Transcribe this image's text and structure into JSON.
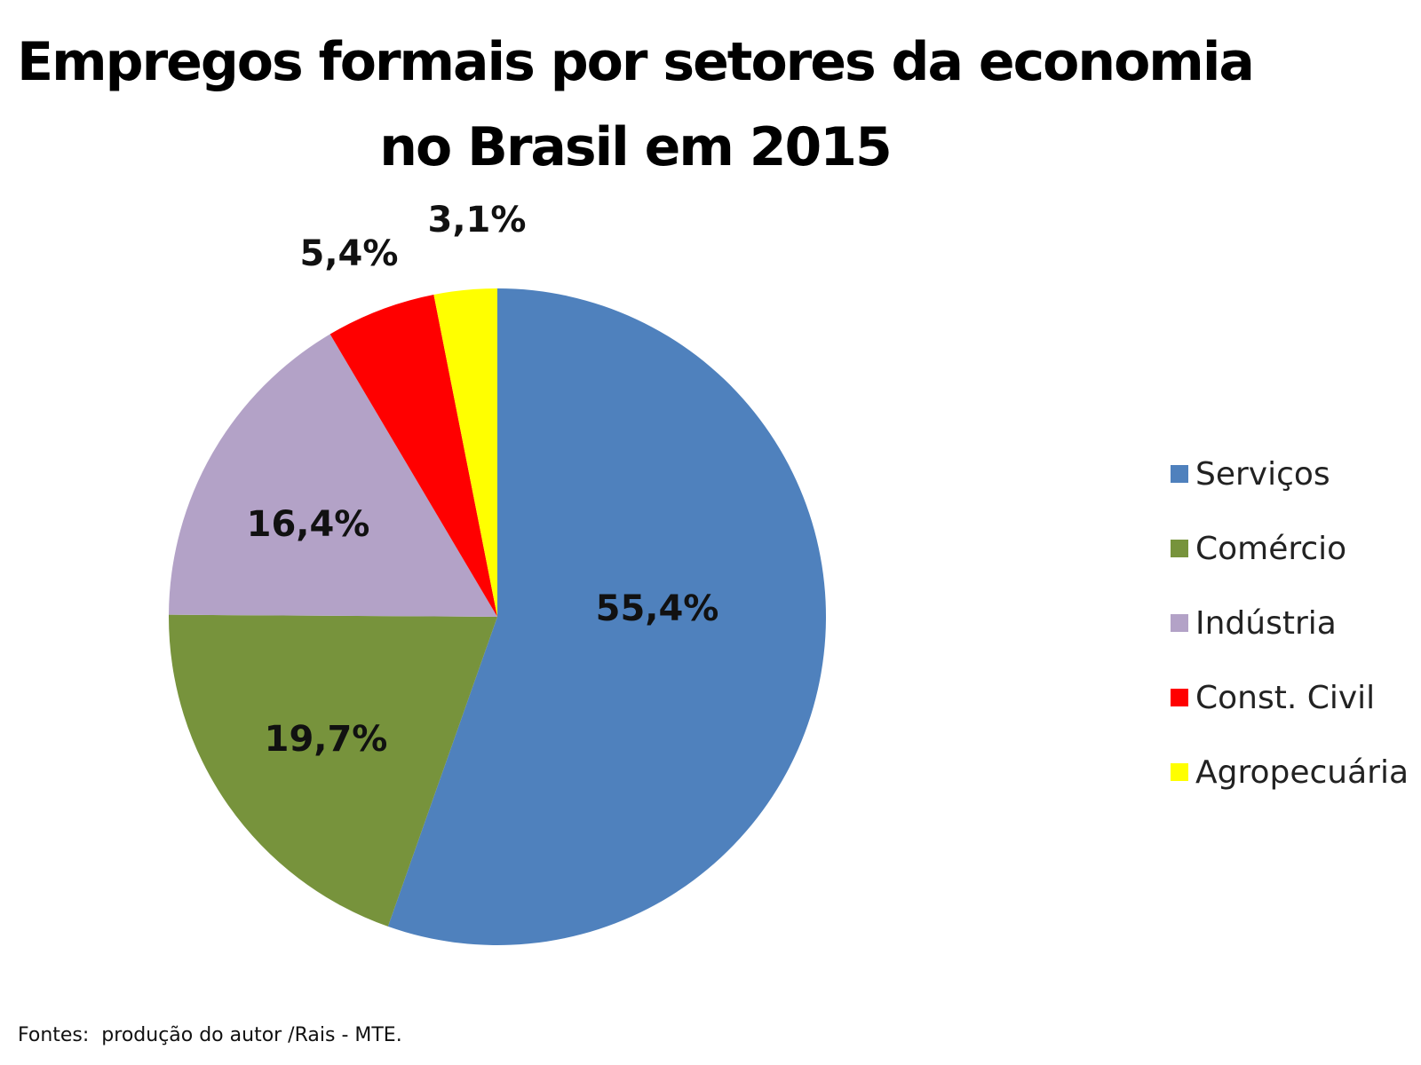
{
  "chart_data": {
    "type": "pie",
    "title_lines": [
      "Empregos formais por setores da economia",
      "no Brasil em 2015"
    ],
    "categories": [
      "Serviços",
      "Comércio",
      "Indústria",
      "Const. Civil",
      "Agropecuária"
    ],
    "values": [
      55.4,
      19.7,
      16.4,
      5.4,
      3.1
    ],
    "data_labels": [
      "55,4%",
      "19,7%",
      "16,4%",
      "5,4%",
      "3,1%"
    ],
    "colors": [
      "#4F81BD",
      "#77933C",
      "#B3A2C7",
      "#FF0000",
      "#FFFF00"
    ],
    "legend_position": "right",
    "start_angle": "12 o'clock",
    "direction": "clockwise"
  },
  "source_note": "Fontes:  produção do autor /Rais - MTE."
}
